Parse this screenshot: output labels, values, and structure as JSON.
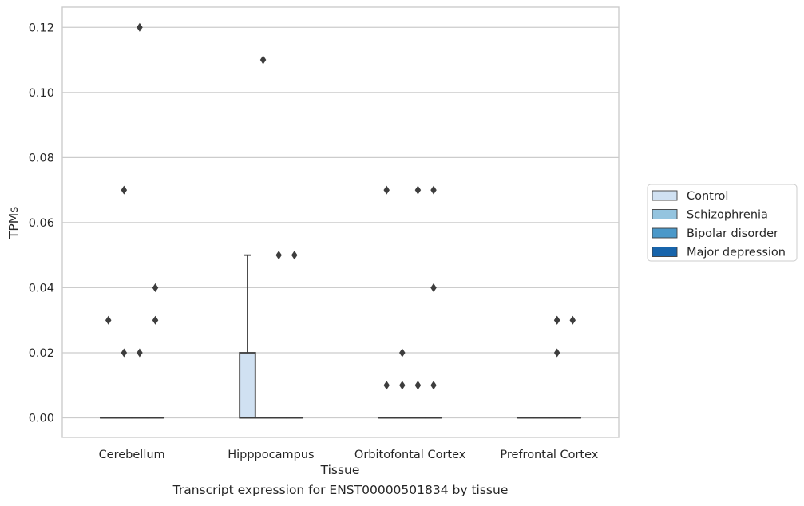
{
  "caption": "Transcript expression for ENST00000501834 by tissue",
  "chart_data": {
    "type": "box",
    "xlabel": "Tissue",
    "ylabel": "TPMs",
    "ylim": [
      -0.006,
      0.1262
    ],
    "yticks": [
      "0.00",
      "0.02",
      "0.04",
      "0.06",
      "0.08",
      "0.10",
      "0.12"
    ],
    "ytick_values": [
      0,
      0.02,
      0.04,
      0.06,
      0.08,
      0.1,
      0.12
    ],
    "grid": true,
    "legend_position": "right",
    "categories": [
      "Cerebellum",
      "Hipppocampus",
      "Orbitofontal Cortex",
      "Prefrontal Cortex"
    ],
    "series": [
      {
        "name": "Control",
        "color": "#d0e1f2",
        "boxes": [
          {
            "q1": 0,
            "median": 0,
            "q3": 0,
            "whisker_low": 0,
            "whisker_high": 0,
            "outliers": [
              0.03
            ]
          },
          {
            "q1": 0,
            "median": 0,
            "q3": 0.02,
            "whisker_low": 0,
            "whisker_high": 0.05,
            "outliers": []
          },
          {
            "q1": 0,
            "median": 0,
            "q3": 0,
            "whisker_low": 0,
            "whisker_high": 0,
            "outliers": [
              0.07,
              0.01
            ]
          },
          {
            "q1": 0,
            "median": 0,
            "q3": 0,
            "whisker_low": 0,
            "whisker_high": 0,
            "outliers": []
          }
        ]
      },
      {
        "name": "Schizophrenia",
        "color": "#94c4df",
        "boxes": [
          {
            "q1": 0,
            "median": 0,
            "q3": 0,
            "whisker_low": 0,
            "whisker_high": 0,
            "outliers": [
              0.07,
              0.02
            ]
          },
          {
            "q1": 0,
            "median": 0,
            "q3": 0,
            "whisker_low": 0,
            "whisker_high": 0,
            "outliers": [
              0.11
            ]
          },
          {
            "q1": 0,
            "median": 0,
            "q3": 0,
            "whisker_low": 0,
            "whisker_high": 0,
            "outliers": [
              0.02,
              0.01
            ]
          },
          {
            "q1": 0,
            "median": 0,
            "q3": 0,
            "whisker_low": 0,
            "whisker_high": 0,
            "outliers": []
          }
        ]
      },
      {
        "name": "Bipolar disorder",
        "color": "#4a98c9",
        "boxes": [
          {
            "q1": 0,
            "median": 0,
            "q3": 0,
            "whisker_low": 0,
            "whisker_high": 0,
            "outliers": [
              0.12,
              0.02
            ]
          },
          {
            "q1": 0,
            "median": 0,
            "q3": 0,
            "whisker_low": 0,
            "whisker_high": 0,
            "outliers": [
              0.05
            ]
          },
          {
            "q1": 0,
            "median": 0,
            "q3": 0,
            "whisker_low": 0,
            "whisker_high": 0,
            "outliers": [
              0.07,
              0.01,
              0.01
            ]
          },
          {
            "q1": 0,
            "median": 0,
            "q3": 0,
            "whisker_low": 0,
            "whisker_high": 0,
            "outliers": [
              0.03,
              0.03,
              0.02
            ]
          }
        ]
      },
      {
        "name": "Major depression",
        "color": "#1764ab",
        "boxes": [
          {
            "q1": 0,
            "median": 0,
            "q3": 0,
            "whisker_low": 0,
            "whisker_high": 0,
            "outliers": [
              0.04,
              0.03
            ]
          },
          {
            "q1": 0,
            "median": 0,
            "q3": 0,
            "whisker_low": 0,
            "whisker_high": 0,
            "outliers": [
              0.05
            ]
          },
          {
            "q1": 0,
            "median": 0,
            "q3": 0,
            "whisker_low": 0,
            "whisker_high": 0,
            "outliers": [
              0.07,
              0.04,
              0.01
            ]
          },
          {
            "q1": 0,
            "median": 0,
            "q3": 0,
            "whisker_low": 0,
            "whisker_high": 0,
            "outliers": [
              0.03
            ]
          }
        ]
      }
    ]
  }
}
